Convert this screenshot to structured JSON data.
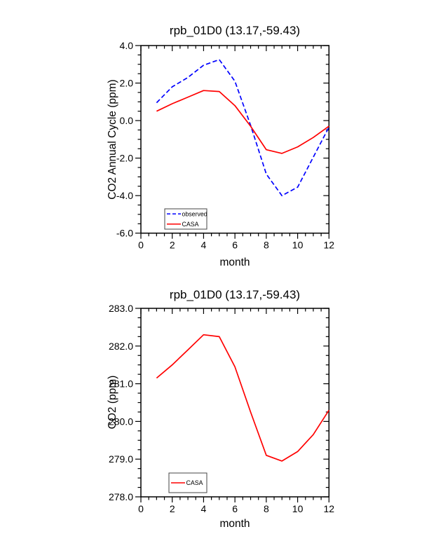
{
  "page": {
    "background": "#ffffff"
  },
  "chart_data": [
    {
      "type": "line",
      "title": "rpb_01D0 (13.17,-59.43)",
      "xlabel": "month",
      "ylabel": "CO2 Annual Cycle (ppm)",
      "xlim": [
        0,
        12
      ],
      "ylim": [
        -6.0,
        4.0
      ],
      "grid": false,
      "legend_position": "lower-left-inside",
      "x": [
        1,
        2,
        3,
        4,
        5,
        6,
        7,
        8,
        9,
        10,
        11,
        12
      ],
      "x_ticks": [
        0,
        2,
        4,
        6,
        8,
        10,
        12
      ],
      "x_tick_labels": [
        "0",
        "2",
        "4",
        "6",
        "8",
        "10",
        "12"
      ],
      "x_minor_step": 0.5,
      "y_ticks": [
        4.0,
        2.0,
        0.0,
        -2.0,
        -4.0,
        -6.0
      ],
      "y_tick_labels": [
        "4.0",
        "2.0",
        "0.0",
        "-2.0",
        "-4.0",
        "-6.0"
      ],
      "y_minor_step": 0.5,
      "series": [
        {
          "name": "observed",
          "color": "#0000ff",
          "line_style": "dashed",
          "values": [
            0.95,
            1.8,
            2.3,
            2.95,
            3.25,
            2.1,
            -0.25,
            -2.85,
            -4.0,
            -3.55,
            -1.95,
            -0.35
          ]
        },
        {
          "name": "CASA",
          "color": "#ff0000",
          "line_style": "solid",
          "values": [
            0.5,
            0.9,
            1.25,
            1.6,
            1.55,
            0.8,
            -0.3,
            -1.55,
            -1.75,
            -1.4,
            -0.9,
            -0.3
          ]
        }
      ]
    },
    {
      "type": "line",
      "title": "rpb_01D0 (13.17,-59.43)",
      "xlabel": "month",
      "ylabel": "CO2 (ppm)",
      "xlim": [
        0,
        12
      ],
      "ylim": [
        278.0,
        283.0
      ],
      "grid": false,
      "legend_position": "lower-left-inside",
      "x": [
        1,
        2,
        3,
        4,
        5,
        6,
        7,
        8,
        9,
        10,
        11,
        12
      ],
      "x_ticks": [
        0,
        2,
        4,
        6,
        8,
        10,
        12
      ],
      "x_tick_labels": [
        "0",
        "2",
        "4",
        "6",
        "8",
        "10",
        "12"
      ],
      "x_minor_step": 0.5,
      "y_ticks": [
        283.0,
        282.0,
        281.0,
        280.0,
        279.0,
        278.0
      ],
      "y_tick_labels": [
        "283.0",
        "282.0",
        "281.0",
        "280.0",
        "279.0",
        "278.0"
      ],
      "y_minor_step": 0.25,
      "series": [
        {
          "name": "CASA",
          "color": "#ff0000",
          "line_style": "solid",
          "values": [
            281.15,
            281.5,
            281.9,
            282.3,
            282.25,
            281.45,
            280.25,
            279.1,
            278.95,
            279.2,
            279.65,
            280.3
          ]
        }
      ]
    }
  ]
}
